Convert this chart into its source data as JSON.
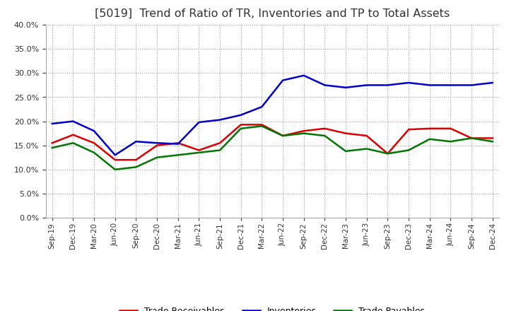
{
  "title": "[5019]  Trend of Ratio of TR, Inventories and TP to Total Assets",
  "labels": [
    "Sep-19",
    "Dec-19",
    "Mar-20",
    "Jun-20",
    "Sep-20",
    "Dec-20",
    "Mar-21",
    "Jun-21",
    "Sep-21",
    "Dec-21",
    "Mar-22",
    "Jun-22",
    "Sep-22",
    "Dec-22",
    "Mar-23",
    "Jun-23",
    "Sep-23",
    "Dec-23",
    "Mar-24",
    "Jun-24",
    "Sep-24",
    "Dec-24"
  ],
  "trade_receivables": [
    15.5,
    17.2,
    15.5,
    12.0,
    12.0,
    15.0,
    15.5,
    14.0,
    15.5,
    19.3,
    19.3,
    17.0,
    18.0,
    18.5,
    17.5,
    17.0,
    13.3,
    18.3,
    18.5,
    18.5,
    16.5,
    16.5
  ],
  "inventories": [
    19.5,
    20.0,
    18.0,
    13.0,
    15.8,
    15.5,
    15.3,
    19.8,
    20.3,
    21.3,
    23.0,
    28.5,
    29.5,
    27.5,
    27.0,
    27.5,
    27.5,
    28.0,
    27.5,
    27.5,
    27.5,
    28.0
  ],
  "trade_payables": [
    14.5,
    15.5,
    13.5,
    10.0,
    10.5,
    12.5,
    13.0,
    13.5,
    14.0,
    18.5,
    19.0,
    17.0,
    17.5,
    17.0,
    13.8,
    14.3,
    13.3,
    14.0,
    16.3,
    15.8,
    16.5,
    15.8
  ],
  "tr_color": "#dd0000",
  "inv_color": "#0000cc",
  "tp_color": "#007700",
  "ylim": [
    0,
    40
  ],
  "yticks": [
    0,
    5,
    10,
    15,
    20,
    25,
    30,
    35,
    40
  ],
  "background_color": "#ffffff",
  "grid_color": "#999999",
  "title_fontsize": 11.5,
  "title_color": "#333333",
  "tick_color": "#333333",
  "legend_labels": [
    "Trade Receivables",
    "Inventories",
    "Trade Payables"
  ]
}
